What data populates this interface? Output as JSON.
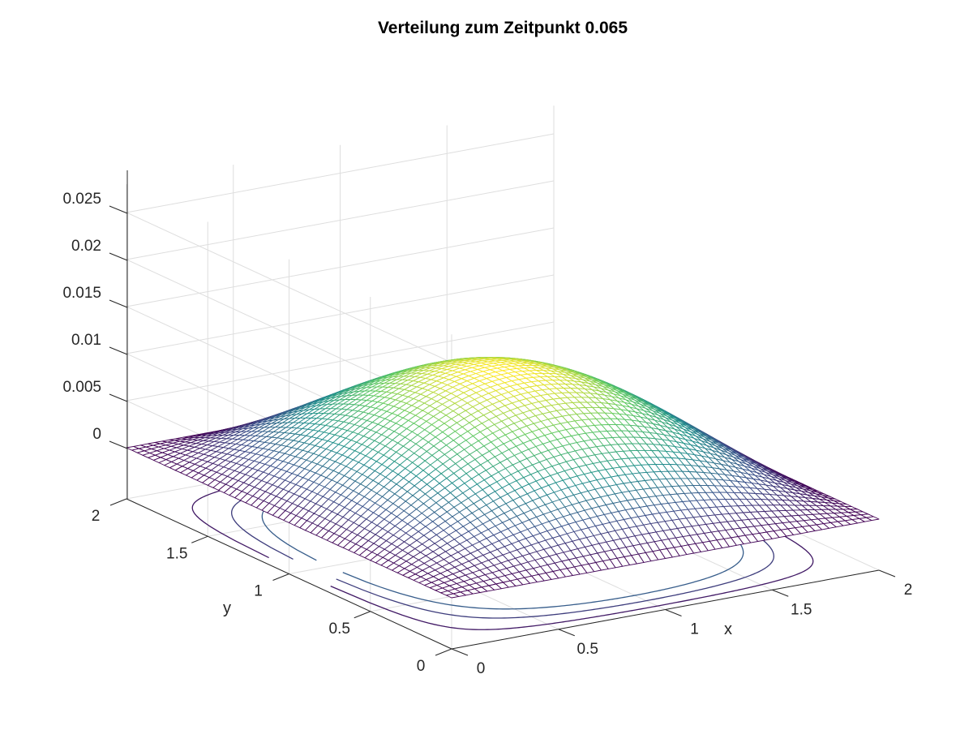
{
  "chart_data": {
    "type": "surface3d",
    "title": "Verteilung zum Zeitpunkt 0.065",
    "xlabel": "x",
    "ylabel": "y",
    "zlabel": "",
    "xlim": [
      0,
      2
    ],
    "ylim": [
      0,
      2
    ],
    "zlim": [
      0,
      0.028
    ],
    "xticks": [
      0,
      0.5,
      1,
      1.5,
      2
    ],
    "yticks": [
      0,
      0.5,
      1,
      1.5,
      2
    ],
    "zticks": [
      0,
      0.005,
      0.01,
      0.015,
      0.02,
      0.025
    ],
    "xtick_labels": [
      "0",
      "0.5",
      "1",
      "1.5",
      "2"
    ],
    "ytick_labels": [
      "0",
      "0.5",
      "1",
      "1.5",
      "2"
    ],
    "ztick_labels": [
      "0",
      "0.005",
      "0.01",
      "0.015",
      "0.02",
      "0.025"
    ],
    "surface": {
      "function": "peak * sin(pi*x/2) * sin(pi*y/2)",
      "peak": 0.012,
      "grid_points": 61,
      "colormap": "viridis"
    },
    "contour_levels": [
      0.0009,
      0.0022,
      0.0035
    ],
    "grid": true,
    "colormap_stops": [
      "#440154",
      "#3b528b",
      "#21918c",
      "#5ec962",
      "#fde725"
    ]
  }
}
